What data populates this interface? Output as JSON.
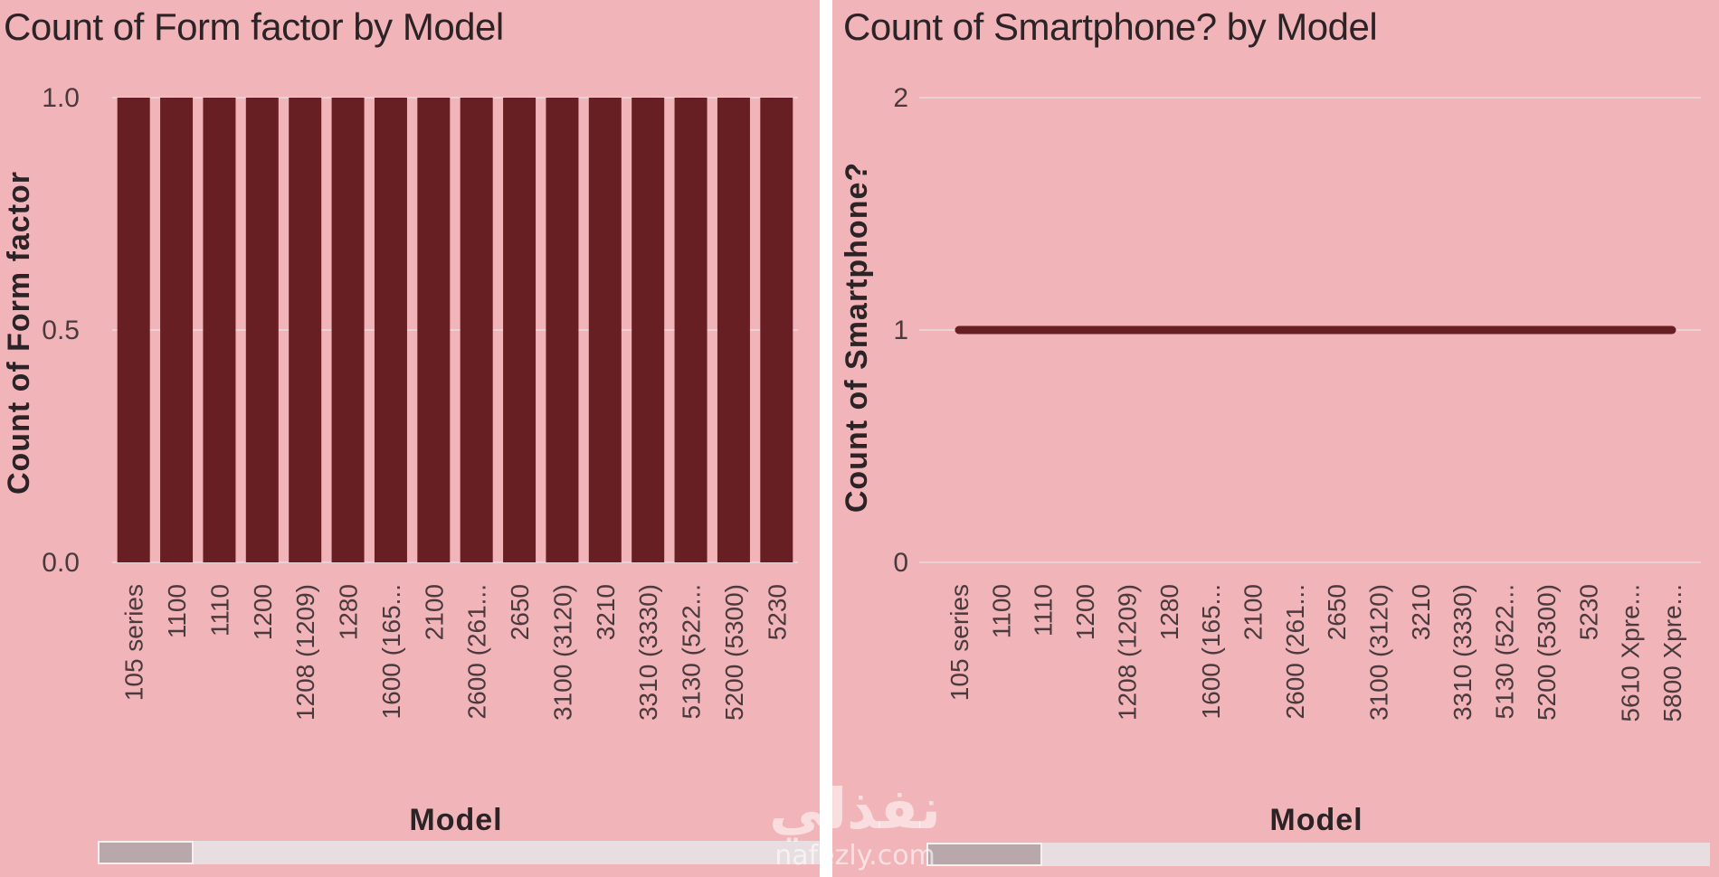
{
  "colors": {
    "background": "#f1b4b9",
    "bar": "#681f24",
    "line": "#681f24",
    "gridline": "#e9d2d5",
    "text": "#2b2326"
  },
  "watermark": {
    "logo": "نفذلي",
    "url": "nafezly.com"
  },
  "chart_data": [
    {
      "type": "bar",
      "title": "Count of Form factor by Model",
      "xlabel": "Model",
      "ylabel": "Count of Form factor",
      "ylim": [
        0,
        1
      ],
      "yticks": [
        "0.0",
        "0.5",
        "1.0"
      ],
      "grid": true,
      "categories": [
        "105 series",
        "1100",
        "1110",
        "1200",
        "1208 (1209)",
        "1280",
        "1600 (165...",
        "2100",
        "2600 (261...",
        "2650",
        "3100 (3120)",
        "3210",
        "3310 (3330)",
        "5130 (522...",
        "5200 (5300)",
        "5230"
      ],
      "values": [
        1,
        1,
        1,
        1,
        1,
        1,
        1,
        1,
        1,
        1,
        1,
        1,
        1,
        1,
        1,
        1
      ],
      "scrollbar_position": 0
    },
    {
      "type": "line",
      "title": "Count of Smartphone? by Model",
      "xlabel": "Model",
      "ylabel": "Count of Smartphone?",
      "ylim": [
        0,
        2
      ],
      "yticks": [
        "0",
        "1",
        "2"
      ],
      "grid": true,
      "categories": [
        "105 series",
        "1100",
        "1110",
        "1200",
        "1208 (1209)",
        "1280",
        "1600 (165...",
        "2100",
        "2600 (261...",
        "2650",
        "3100 (3120)",
        "3210",
        "3310 (3330)",
        "5130 (522...",
        "5200 (5300)",
        "5230",
        "5610 Xpre...",
        "5800 Xpre..."
      ],
      "values": [
        1,
        1,
        1,
        1,
        1,
        1,
        1,
        1,
        1,
        1,
        1,
        1,
        1,
        1,
        1,
        1,
        1,
        1
      ],
      "scrollbar_position": 0
    }
  ]
}
